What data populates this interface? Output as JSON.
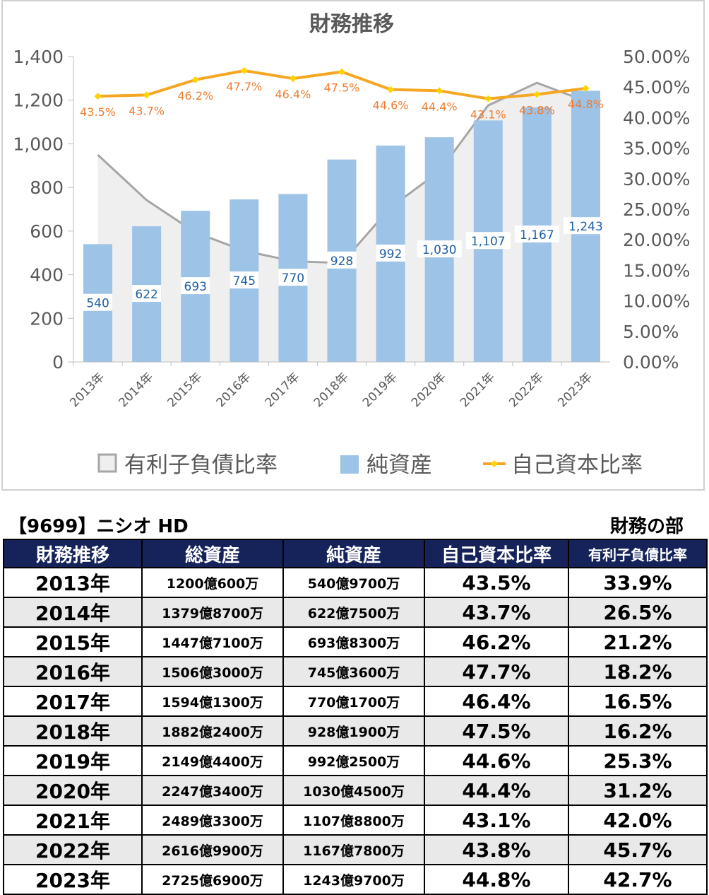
{
  "chart_data": {
    "type": "bar",
    "title": "財務推移",
    "categories": [
      "2013年",
      "2014年",
      "2015年",
      "2016年",
      "2017年",
      "2018年",
      "2019年",
      "2020年",
      "2021年",
      "2022年",
      "2023年"
    ],
    "series": [
      {
        "name": "有利子負債比率",
        "kind": "area",
        "axis": "right",
        "values": [
          33.9,
          26.5,
          21.2,
          18.2,
          16.5,
          16.2,
          25.3,
          31.2,
          42.0,
          45.7,
          42.7
        ],
        "color": "#a6a6a6"
      },
      {
        "name": "純資産",
        "kind": "bar",
        "axis": "left",
        "values": [
          540,
          622,
          693,
          745,
          770,
          928,
          992,
          1030,
          1107,
          1167,
          1243
        ],
        "labels": [
          "540",
          "622",
          "693",
          "745",
          "770",
          "928",
          "992",
          "1,030",
          "1,107",
          "1,167",
          "1,243"
        ],
        "color": "#9dc3e6"
      },
      {
        "name": "自己資本比率",
        "kind": "line",
        "axis": "right",
        "values": [
          43.5,
          43.7,
          46.2,
          47.7,
          46.4,
          47.5,
          44.6,
          44.4,
          43.1,
          43.8,
          44.8
        ],
        "labels": [
          "43.5%",
          "43.7%",
          "46.2%",
          "47.7%",
          "46.4%",
          "47.5%",
          "44.6%",
          "44.4%",
          "43.1%",
          "43.8%",
          "44.8%"
        ],
        "color": "#f5a623"
      }
    ],
    "y_left": {
      "min": 0,
      "max": 1400,
      "ticks": [
        "0",
        "200",
        "400",
        "600",
        "800",
        "1,000",
        "1,200",
        "1,400"
      ]
    },
    "y_right": {
      "min": 0,
      "max": 50,
      "ticks": [
        "0.00%",
        "5.00%",
        "10.00%",
        "15.00%",
        "20.00%",
        "25.00%",
        "30.00%",
        "35.00%",
        "40.00%",
        "45.00%",
        "50.00%"
      ]
    },
    "legend": [
      "有利子負債比率",
      "純資産",
      "自己資本比率"
    ],
    "legend_position": "bottom"
  },
  "company": "【9699】ニシオ HD",
  "section": "財務の部",
  "table": {
    "headers": [
      "財務推移",
      "総資産",
      "純資産",
      "自己資本比率",
      "有利子負債比率"
    ],
    "rows": [
      [
        "2013年",
        "1200億600万",
        "540億9700万",
        "43.5%",
        "33.9%"
      ],
      [
        "2014年",
        "1379億8700万",
        "622億7500万",
        "43.7%",
        "26.5%"
      ],
      [
        "2015年",
        "1447億7100万",
        "693億8300万",
        "46.2%",
        "21.2%"
      ],
      [
        "2016年",
        "1506億3000万",
        "745億3600万",
        "47.7%",
        "18.2%"
      ],
      [
        "2017年",
        "1594億1300万",
        "770億1700万",
        "46.4%",
        "16.5%"
      ],
      [
        "2018年",
        "1882億2400万",
        "928億1900万",
        "47.5%",
        "16.2%"
      ],
      [
        "2019年",
        "2149億4400万",
        "992億2500万",
        "44.6%",
        "25.3%"
      ],
      [
        "2020年",
        "2247億3400万",
        "1030億4500万",
        "44.4%",
        "31.2%"
      ],
      [
        "2021年",
        "2489億3300万",
        "1107億8800万",
        "43.1%",
        "42.0%"
      ],
      [
        "2022年",
        "2616億9900万",
        "1167億7800万",
        "43.8%",
        "45.7%"
      ],
      [
        "2023年",
        "2725億6900万",
        "1243億9700万",
        "44.8%",
        "42.7%"
      ]
    ]
  }
}
